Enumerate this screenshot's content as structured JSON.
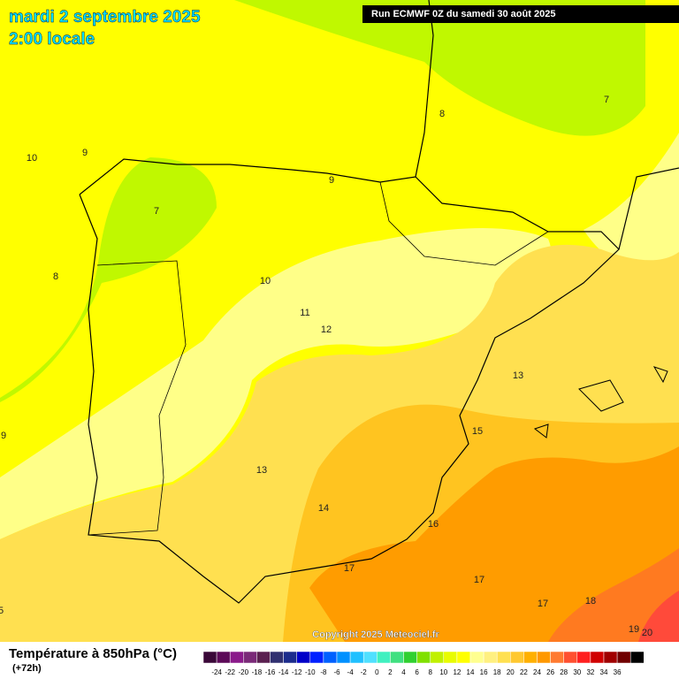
{
  "header": {
    "title": "mardi 2 septembre 2025",
    "subtitle": "2:00 locale",
    "run": "Run ECMWF 0Z du samedi 30 août 2025"
  },
  "map": {
    "contour_labels": [
      10,
      9,
      7,
      8,
      9,
      8,
      7,
      10,
      11,
      12,
      13,
      15,
      13,
      14,
      16,
      17,
      17,
      17,
      18,
      19,
      20,
      9,
      5
    ]
  },
  "copyright": "Copyright 2025 Meteociel.fr",
  "legend": {
    "title": "Température à 850hPa (°C)",
    "lead": "(+72h)",
    "ticks": [
      -24,
      -22,
      -20,
      -18,
      -16,
      -14,
      -12,
      -10,
      -8,
      -6,
      -4,
      -2,
      0,
      2,
      4,
      6,
      8,
      10,
      12,
      14,
      16,
      18,
      20,
      22,
      24,
      26,
      28,
      30,
      32,
      34,
      36
    ],
    "colors": [
      "#3a0838",
      "#5c0a58",
      "#8a1a8a",
      "#7a2a78",
      "#5a2050",
      "#303070",
      "#1c2c8c",
      "#0000c8",
      "#0020ff",
      "#0060ff",
      "#0090ff",
      "#20c0ff",
      "#50e0ff",
      "#40f0c0",
      "#40e080",
      "#30d030",
      "#80e000",
      "#c0f000",
      "#e8fc00",
      "#ffff00",
      "#ffff90",
      "#fff080",
      "#ffe050",
      "#ffc830",
      "#ffb000",
      "#ff9800",
      "#ff7a30",
      "#ff5030",
      "#ff2020",
      "#d00000",
      "#a00000",
      "#700000",
      "#000000"
    ]
  }
}
